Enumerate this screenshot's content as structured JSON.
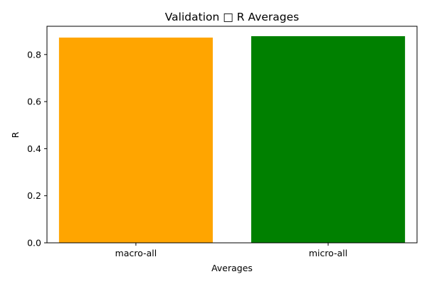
{
  "chart_data": {
    "type": "bar",
    "title": "Validation □ R Averages",
    "xlabel": "Averages",
    "ylabel": "R",
    "categories": [
      "macro-all",
      "micro-all"
    ],
    "values": [
      0.872,
      0.878
    ],
    "bar_colors": [
      "#ffa500",
      "#008000"
    ],
    "ylim": [
      0,
      0.92
    ],
    "yticks": [
      0.0,
      0.2,
      0.4,
      0.6,
      0.8
    ],
    "ytick_labels": [
      "0.0",
      "0.2",
      "0.4",
      "0.6",
      "0.8"
    ],
    "grid": false,
    "legend": "none"
  }
}
